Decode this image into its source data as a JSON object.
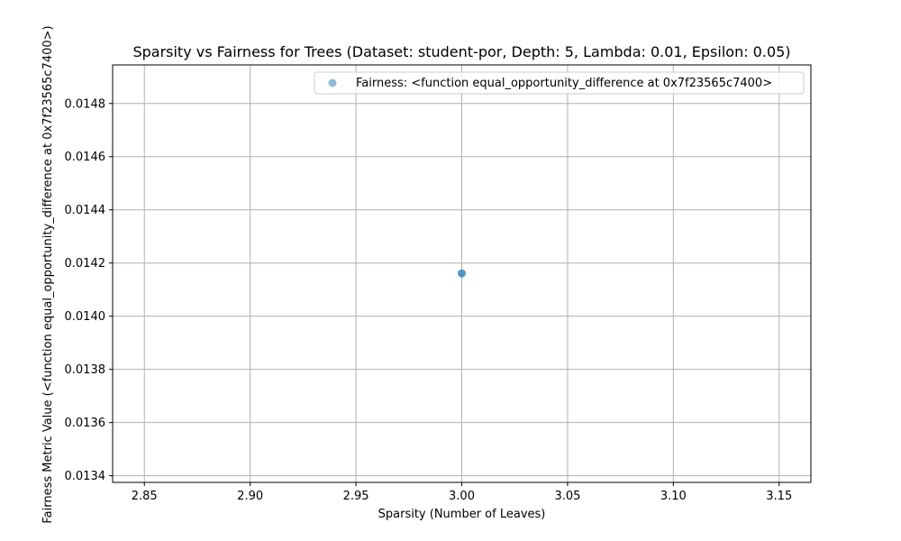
{
  "chart_data": {
    "type": "scatter",
    "title": "Sparsity vs Fairness for Trees (Dataset: student-por, Depth: 5, Lambda: 0.01, Epsilon: 0.05)",
    "xlabel": "Sparsity (Number of Leaves)",
    "ylabel": "Fairness Metric Value (<function equal_opportunity_difference at 0x7f23565c7400>)",
    "xlim": [
      2.835,
      3.165
    ],
    "ylim": [
      0.013375,
      0.014945
    ],
    "x_ticks": [
      2.85,
      2.9,
      2.95,
      3.0,
      3.05,
      3.1,
      3.15
    ],
    "x_tick_labels": [
      "2.85",
      "2.90",
      "2.95",
      "3.00",
      "3.05",
      "3.10",
      "3.15"
    ],
    "y_ticks": [
      0.0134,
      0.0136,
      0.0138,
      0.014,
      0.0142,
      0.0144,
      0.0146,
      0.0148
    ],
    "y_tick_labels": [
      "0.0134",
      "0.0136",
      "0.0138",
      "0.0140",
      "0.0142",
      "0.0144",
      "0.0146",
      "0.0148"
    ],
    "grid": true,
    "legend_position": "top-right",
    "series": [
      {
        "name": "Fairness: <function equal_opportunity_difference at 0x7f23565c7400>",
        "color": "#1f77b4",
        "alpha": 0.5,
        "points": [
          {
            "x": 3.0,
            "y": 0.014161
          },
          {
            "x": 3.0,
            "y": 0.014161
          }
        ]
      }
    ]
  }
}
